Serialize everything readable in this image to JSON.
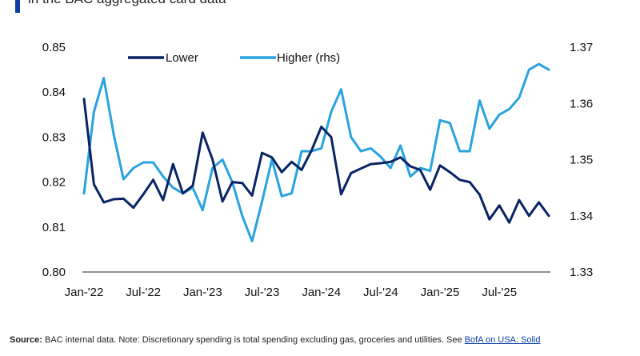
{
  "header": {
    "subtitle": "in the BAC aggregated card data"
  },
  "footer": {
    "source_label": "Source:",
    "source_text": "BAC internal data. Note: Discretionary spending is total spending excluding gas, groceries and utilities. See",
    "link_text": "BofA on USA: Solid"
  },
  "colors": {
    "lower": "#0a2463",
    "higher": "#29a3e0",
    "accent": "#0b3fa8"
  },
  "chart_data": {
    "type": "line",
    "title": "",
    "x_labels": [
      "Jan-'22",
      "Jul-'22",
      "Jan-'23",
      "Jul-'23",
      "Jan-'24",
      "Jul-'24",
      "Jan-'25",
      "Jul-'25"
    ],
    "x_label_positions": [
      0,
      6,
      12,
      18,
      24,
      30,
      36,
      42
    ],
    "left_axis": {
      "min": 0.8,
      "max": 0.85,
      "ticks": [
        "0.85",
        "0.84",
        "0.83",
        "0.82",
        "0.81",
        "0.80"
      ]
    },
    "right_axis": {
      "min": 1.33,
      "max": 1.37,
      "ticks": [
        "1.37",
        "1.36",
        "1.35",
        "1.34",
        "1.33"
      ]
    },
    "legend": [
      "Lower",
      "Higher (rhs)"
    ],
    "series": [
      {
        "name": "Lower",
        "axis": "left",
        "values": [
          0.8385,
          0.8195,
          0.8155,
          0.8162,
          0.8163,
          0.8143,
          0.8173,
          0.8205,
          0.816,
          0.824,
          0.8175,
          0.8192,
          0.831,
          0.825,
          0.8157,
          0.82,
          0.8198,
          0.817,
          0.8265,
          0.8255,
          0.8222,
          0.8245,
          0.8227,
          0.827,
          0.8323,
          0.83,
          0.8173,
          0.822,
          0.823,
          0.824,
          0.8242,
          0.8245,
          0.8255,
          0.8235,
          0.8227,
          0.8183,
          0.8237,
          0.8222,
          0.8205,
          0.82,
          0.8172,
          0.8117,
          0.8148,
          0.811,
          0.816,
          0.8125,
          0.8155,
          0.8125
        ]
      },
      {
        "name": "Higher (rhs)",
        "axis": "right",
        "values": [
          1.344,
          1.3585,
          1.3645,
          1.3545,
          1.3465,
          1.3485,
          1.3495,
          1.3495,
          1.347,
          1.345,
          1.344,
          1.345,
          1.341,
          1.3485,
          1.35,
          1.346,
          1.34,
          1.3355,
          1.3425,
          1.35,
          1.3435,
          1.344,
          1.3515,
          1.3515,
          1.352,
          1.3585,
          1.3625,
          1.354,
          1.3515,
          1.352,
          1.3505,
          1.3485,
          1.3525,
          1.347,
          1.3485,
          1.348,
          1.357,
          1.3565,
          1.3515,
          1.3515,
          1.3605,
          1.3555,
          1.358,
          1.359,
          1.361,
          1.366,
          1.367,
          1.366
        ]
      }
    ]
  }
}
